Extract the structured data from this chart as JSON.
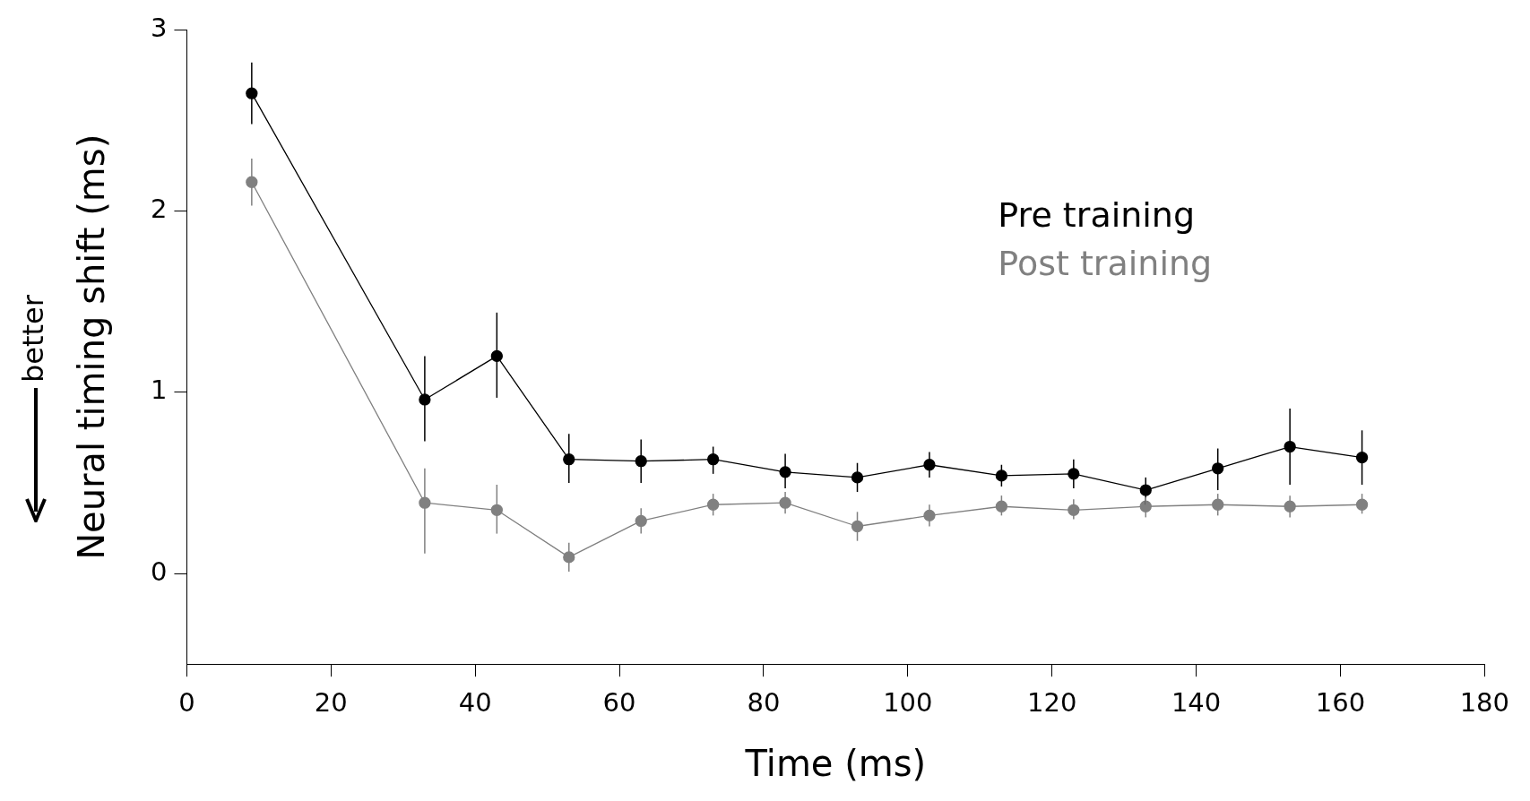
{
  "chart_data": {
    "type": "line",
    "xlabel": "Time (ms)",
    "ylabel": "Neural timing shift (ms)",
    "annotations": [
      "better"
    ],
    "x": [
      9,
      33,
      43,
      53,
      63,
      73,
      83,
      93,
      103,
      113,
      123,
      133,
      143,
      153,
      163
    ],
    "xlim": [
      0,
      180
    ],
    "xticks": [
      0,
      20,
      40,
      60,
      80,
      100,
      120,
      140,
      160,
      180
    ],
    "ylim": [
      -0.5,
      3
    ],
    "yticks": [
      0,
      1,
      2,
      3
    ],
    "grid": false,
    "legend": "top right",
    "marker": "circle",
    "line_style": "solid",
    "series": [
      {
        "name": "Pre training",
        "color": "#000000",
        "values": [
          2.65,
          0.96,
          1.2,
          0.63,
          0.62,
          0.63,
          0.56,
          0.53,
          0.6,
          0.54,
          0.55,
          0.46,
          0.58,
          0.7,
          0.64
        ],
        "errors": [
          [
            2.48,
            2.82
          ],
          [
            0.73,
            1.2
          ],
          [
            0.97,
            1.44
          ],
          [
            0.5,
            0.77
          ],
          [
            0.5,
            0.74
          ],
          [
            0.55,
            0.7
          ],
          [
            0.47,
            0.66
          ],
          [
            0.45,
            0.61
          ],
          [
            0.53,
            0.67
          ],
          [
            0.48,
            0.6
          ],
          [
            0.47,
            0.63
          ],
          [
            0.38,
            0.53
          ],
          [
            0.46,
            0.69
          ],
          [
            0.49,
            0.91
          ],
          [
            0.49,
            0.79
          ]
        ]
      },
      {
        "name": "Post training",
        "color": "#808080",
        "values": [
          2.16,
          0.39,
          0.35,
          0.09,
          0.29,
          0.38,
          0.39,
          0.26,
          0.32,
          0.37,
          0.35,
          0.37,
          0.38,
          0.37,
          0.38
        ],
        "errors": [
          [
            2.03,
            2.29
          ],
          [
            0.11,
            0.58
          ],
          [
            0.22,
            0.49
          ],
          [
            0.01,
            0.17
          ],
          [
            0.22,
            0.36
          ],
          [
            0.32,
            0.44
          ],
          [
            0.33,
            0.45
          ],
          [
            0.18,
            0.34
          ],
          [
            0.26,
            0.38
          ],
          [
            0.32,
            0.43
          ],
          [
            0.3,
            0.41
          ],
          [
            0.31,
            0.42
          ],
          [
            0.32,
            0.44
          ],
          [
            0.31,
            0.43
          ],
          [
            0.33,
            0.44
          ]
        ]
      }
    ]
  }
}
